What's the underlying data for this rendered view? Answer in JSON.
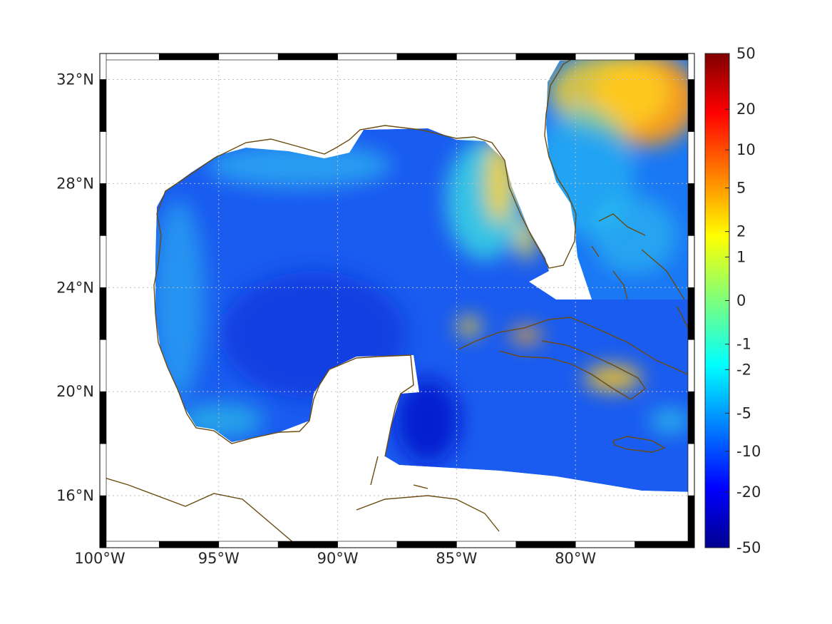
{
  "map": {
    "lon_range": [
      -100,
      -75
    ],
    "lat_range": [
      14,
      33
    ],
    "lon_ticks": [
      {
        "value": -100,
        "label": "100°W"
      },
      {
        "value": -95,
        "label": "95°W"
      },
      {
        "value": -90,
        "label": "90°W"
      },
      {
        "value": -85,
        "label": "85°W"
      },
      {
        "value": -80,
        "label": "80°W"
      }
    ],
    "lat_ticks": [
      {
        "value": 32,
        "label": "32°N"
      },
      {
        "value": 28,
        "label": "28°N"
      },
      {
        "value": 24,
        "label": "24°N"
      },
      {
        "value": 20,
        "label": "20°N"
      },
      {
        "value": 16,
        "label": "16°N"
      }
    ],
    "grid": "dotted",
    "coastline_color": "#6b4a10",
    "land_color": "#ffffff",
    "frame": "black-white-checkered"
  },
  "colorbar": {
    "position": "right",
    "colormap": "jet",
    "scale": "symmetric-log",
    "tick_labels": [
      "50",
      "20",
      "10",
      "5",
      "2",
      "1",
      "0",
      "-1",
      "-2",
      "-5",
      "-10",
      "-20",
      "-50"
    ],
    "range": [
      -50,
      50
    ]
  },
  "chart_data": {
    "type": "heatmap",
    "title": "",
    "xlabel": "",
    "ylabel": "",
    "xlim": [
      -100,
      -75
    ],
    "ylim": [
      14,
      33
    ],
    "colorbar_range": [
      -50,
      50
    ],
    "regions": [
      {
        "region": "central Gulf of Mexico",
        "approx_value": -10
      },
      {
        "region": "Bay of Campeche",
        "approx_value": -5
      },
      {
        "region": "west Florida shelf",
        "approx_value": 2
      },
      {
        "region": "Atlantic off Carolinas",
        "approx_value": 5
      },
      {
        "region": "Cuba / Bahamas shelves",
        "approx_value": 2
      },
      {
        "region": "Caribbean Sea",
        "approx_value": -10
      }
    ]
  }
}
